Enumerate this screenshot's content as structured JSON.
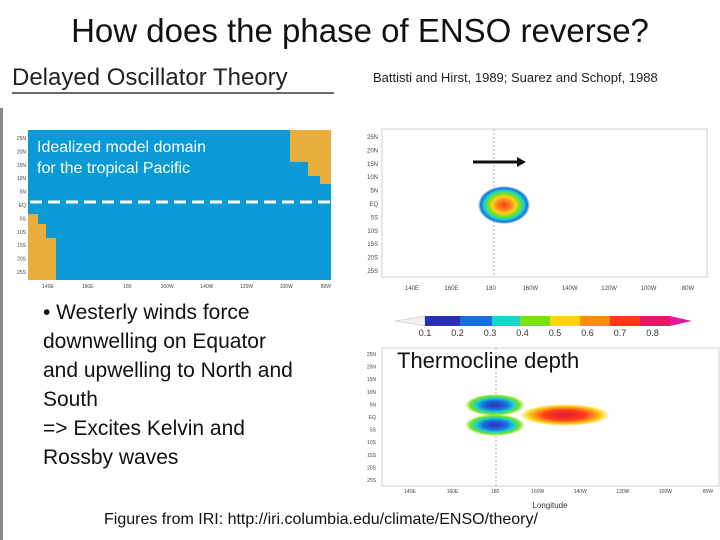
{
  "slide": {
    "title": "How does the phase of ENSO reverse?",
    "subtitle": "Delayed Oscillator Theory",
    "citation": "Battisti and Hirst, 1989; Suarez and Schopf, 1988",
    "footer": "Figures from IRI: http://iri.columbia.edu/climate/ENSO/theory/"
  },
  "domain_map": {
    "caption_line1": "Idealized model domain",
    "caption_line2": "for the tropical Pacific",
    "lat_labels": [
      "25N",
      "20N",
      "15N",
      "10N",
      "5N",
      "EQ",
      "5S",
      "10S",
      "15S",
      "20S",
      "25S"
    ],
    "lon_labels": [
      "140E",
      "160E",
      "180",
      "160W",
      "140W",
      "120W",
      "100W",
      "80W"
    ],
    "ocean_color": "#0a9ad6",
    "land_color": "#e8ad3a"
  },
  "bullet": {
    "text": "• Westerly winds force\ndownwelling on Equator\nand upwelling to North and\nSouth\n=> Excites Kelvin and\nRossby waves"
  },
  "wind_map": {
    "lat_labels": [
      "25N",
      "20N",
      "15N",
      "10N",
      "5N",
      "EQ",
      "5S",
      "10S",
      "15S",
      "20S",
      "25S"
    ],
    "lon_labels": [
      "140E",
      "160E",
      "180",
      "160W",
      "140W",
      "120W",
      "100W",
      "80W"
    ]
  },
  "colorbar": {
    "ticks": [
      "0.1",
      "0.2",
      "0.3",
      "0.4",
      "0.5",
      "0.6",
      "0.7",
      "0.8"
    ]
  },
  "thermocline_map": {
    "label": "Thermocline depth",
    "lat_labels": [
      "25N",
      "20N",
      "15N",
      "10N",
      "5N",
      "EQ",
      "5S",
      "10S",
      "15S",
      "20S",
      "25S"
    ],
    "lon_labels": [
      "140E",
      "160E",
      "180",
      "160W",
      "140W",
      "120W",
      "100W",
      "80W"
    ],
    "xlabel": "Longitude"
  }
}
